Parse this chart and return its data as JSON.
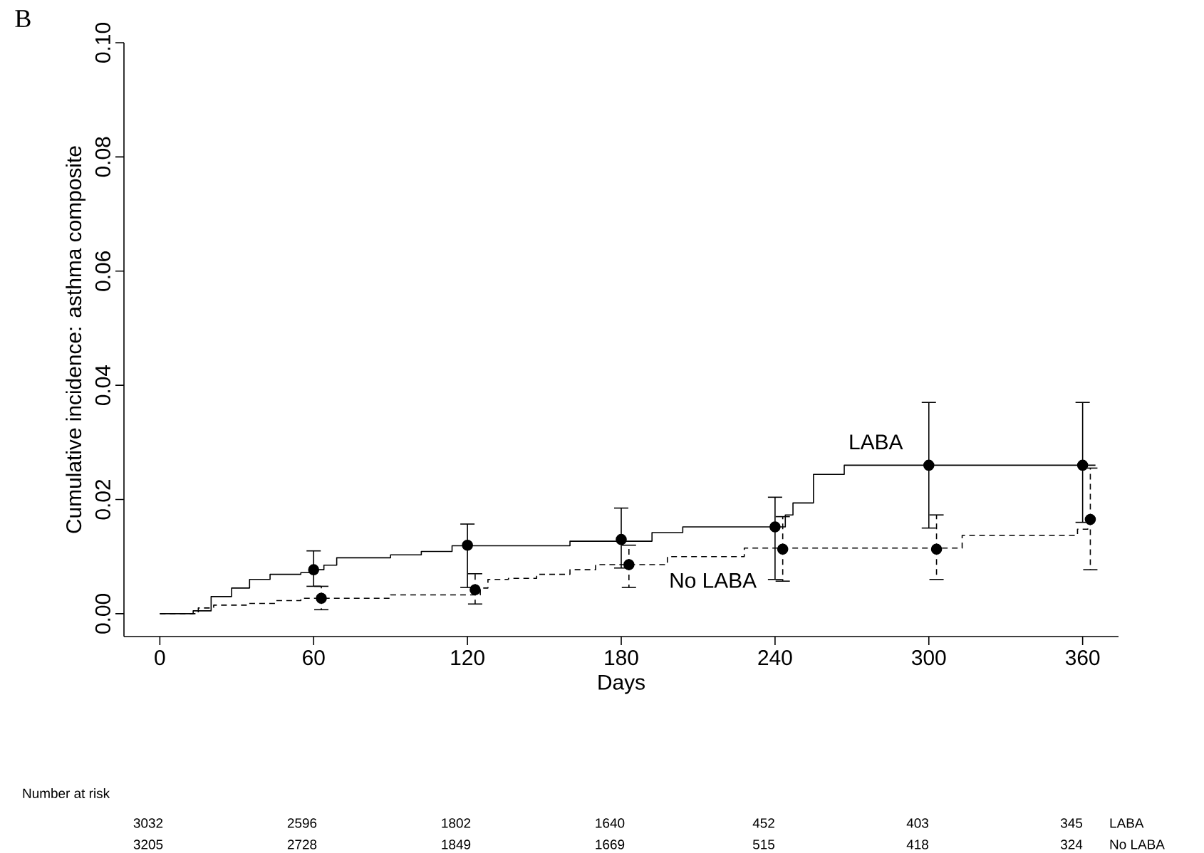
{
  "chart_data": {
    "type": "step",
    "title": "B",
    "xlabel": "Days",
    "ylabel": "Cumulative incidence: asthma composite",
    "xlim": [
      -14,
      374
    ],
    "ylim": [
      -0.004,
      0.1
    ],
    "xticks": [
      0,
      60,
      120,
      180,
      240,
      300,
      360
    ],
    "yticks": [
      {
        "value": 0,
        "label": "0.00"
      },
      {
        "value": 0.02,
        "label": "0.02"
      },
      {
        "value": 0.04,
        "label": "0.04"
      },
      {
        "value": 0.06,
        "label": "0.06"
      },
      {
        "value": 0.08,
        "label": "0.08"
      },
      {
        "value": 0.1,
        "label": "0.10"
      }
    ],
    "series": [
      {
        "name": "LABA",
        "color": "#000000",
        "line_style": "solid",
        "marker": "none",
        "x": [
          0,
          13,
          20,
          28,
          35,
          43,
          55,
          60,
          64,
          69,
          90,
          102,
          114,
          160,
          192,
          204,
          244,
          247,
          255,
          267,
          365
        ],
        "values": [
          0,
          0.0005,
          0.003,
          0.0045,
          0.006,
          0.0069,
          0.0072,
          0.0077,
          0.0085,
          0.0098,
          0.0103,
          0.0109,
          0.0119,
          0.0127,
          0.0142,
          0.0152,
          0.0173,
          0.0194,
          0.0244,
          0.026,
          0.026
        ]
      },
      {
        "name": "No LABA",
        "color": "#000000",
        "line_style": "dashed",
        "marker": "none",
        "x": [
          0,
          15,
          21,
          34,
          45,
          55,
          90,
          125,
          128,
          136,
          147,
          160,
          170,
          198,
          228,
          313,
          358,
          362,
          365
        ],
        "values": [
          0,
          0.001,
          0.0015,
          0.0018,
          0.0023,
          0.0027,
          0.0033,
          0.0045,
          0.006,
          0.0062,
          0.0069,
          0.0077,
          0.0086,
          0.01,
          0.0115,
          0.0137,
          0.0148,
          0.0165,
          0.0165
        ]
      },
      {
        "type": "scatter",
        "color": "#000000",
        "line_style": "solid",
        "marker": "circle",
        "x": [
          60,
          120,
          180,
          240,
          300,
          360
        ],
        "values": [
          0.0077,
          0.012,
          0.013,
          0.0152,
          0.026,
          0.026
        ],
        "errors": [
          [
            0.0048,
            0.011
          ],
          [
            0.0046,
            0.0157
          ],
          [
            0.008,
            0.0185
          ],
          [
            0.006,
            0.0204
          ],
          [
            0.015,
            0.037
          ],
          [
            0.016,
            0.037
          ]
        ]
      },
      {
        "type": "scatter",
        "color": "#000000",
        "line_style": "dashed",
        "marker": "circle",
        "x": [
          63,
          123,
          183,
          243,
          303,
          363
        ],
        "values": [
          0.0027,
          0.0042,
          0.0086,
          0.0113,
          0.0113,
          0.0165
        ],
        "errors": [
          [
            0.0007,
            0.0048
          ],
          [
            0.0017,
            0.007
          ],
          [
            0.0046,
            0.012
          ],
          [
            0.0057,
            0.017
          ],
          [
            0.006,
            0.0173
          ],
          [
            0.0077,
            0.0255
          ]
        ]
      }
    ],
    "annotations": [
      "Number at risk",
      "3032",
      "2596",
      "1802",
      "1640",
      "452",
      "403",
      "345",
      "LABA",
      "3205",
      "2728",
      "1849",
      "1669",
      "515",
      "418",
      "324",
      "No LABA"
    ],
    "grid": false
  }
}
